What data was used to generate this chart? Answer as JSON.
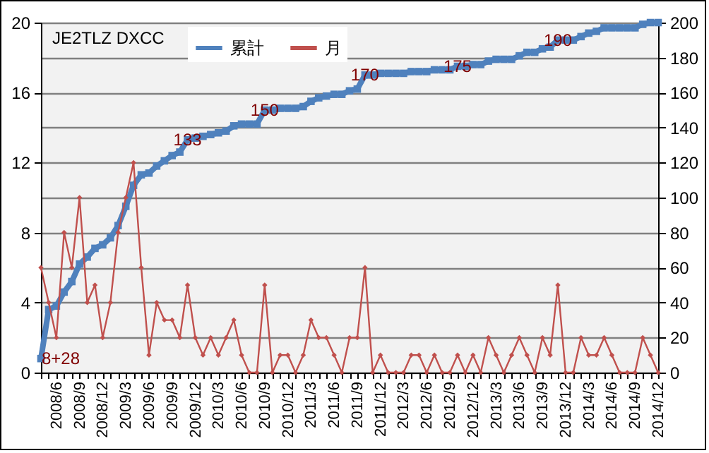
{
  "chart_data": {
    "type": "line",
    "title": "JE2TLZ DXCC",
    "categories": [
      null,
      null,
      "2008/6",
      null,
      null,
      "2008/9",
      null,
      null,
      "2008/12",
      null,
      null,
      "2009/3",
      null,
      null,
      "2009/6",
      null,
      null,
      "2009/9",
      null,
      null,
      "2009/12",
      null,
      null,
      "2010/3",
      null,
      null,
      "2010/6",
      null,
      null,
      "2010/9",
      null,
      null,
      "2010/12",
      null,
      null,
      "2011/3",
      null,
      null,
      "2011/6",
      null,
      null,
      "2011/9",
      null,
      null,
      "2011/12",
      null,
      null,
      "2012/3",
      null,
      null,
      "2012/6",
      null,
      null,
      "2012/9",
      null,
      null,
      "2012/12",
      null,
      null,
      "2013/3",
      null,
      null,
      "2013/6",
      null,
      null,
      "2013/9",
      null,
      null,
      "2013/12",
      null,
      null,
      "2014/3",
      null,
      null,
      "2014/6",
      null,
      null,
      "2014/9",
      null,
      null,
      "2014/12"
    ],
    "series": [
      {
        "name": "累計",
        "color": "#4f81bd",
        "axis": "y2",
        "marker": "square",
        "value_labels": [
          "8+28",
          null,
          null,
          null,
          null,
          null,
          null,
          null,
          null,
          null,
          null,
          null,
          null,
          null,
          null,
          null,
          null,
          null,
          null,
          "133",
          null,
          null,
          null,
          null,
          null,
          null,
          null,
          null,
          null,
          "150",
          null,
          null,
          null,
          null,
          null,
          null,
          null,
          null,
          null,
          null,
          null,
          null,
          "170",
          null,
          null,
          null,
          null,
          null,
          null,
          null,
          null,
          null,
          null,
          null,
          "175",
          null,
          null,
          null,
          null,
          null,
          null,
          null,
          null,
          null,
          null,
          null,
          null,
          "190",
          null,
          null,
          null,
          null,
          null,
          null,
          null,
          null,
          null,
          null,
          null,
          null,
          null
        ],
        "values": [
          8,
          36,
          38,
          46,
          52,
          62,
          66,
          71,
          73,
          77,
          84,
          95,
          107,
          113,
          114,
          118,
          121,
          124,
          126,
          133,
          134,
          135,
          136,
          137,
          138,
          141,
          142,
          142,
          142,
          150,
          150,
          151,
          151,
          151,
          152,
          155,
          157,
          158,
          159,
          159,
          161,
          162,
          170,
          170,
          171,
          171,
          171,
          171,
          172,
          172,
          172,
          173,
          173,
          173,
          175,
          175,
          176,
          176,
          178,
          179,
          179,
          179,
          181,
          183,
          183,
          185,
          186,
          190,
          190,
          190,
          192,
          194,
          195,
          197,
          197,
          197,
          197,
          197,
          199,
          200,
          200
        ]
      },
      {
        "name": "月",
        "color": "#c0504d",
        "axis": "y",
        "marker": "diamond",
        "values": [
          6,
          4,
          2,
          8,
          6,
          10,
          4,
          5,
          2,
          4,
          8,
          10,
          12,
          6,
          1,
          4,
          3,
          3,
          2,
          5,
          2,
          1,
          2,
          1,
          2,
          3,
          1,
          0,
          0,
          5,
          0,
          1,
          1,
          0,
          1,
          3,
          2,
          2,
          1,
          0,
          2,
          2,
          6,
          0,
          1,
          0,
          0,
          0,
          1,
          1,
          0,
          1,
          0,
          0,
          1,
          0,
          1,
          0,
          2,
          1,
          0,
          1,
          2,
          1,
          0,
          2,
          1,
          5,
          0,
          0,
          2,
          1,
          1,
          2,
          1,
          0,
          0,
          0,
          2,
          1,
          0
        ]
      }
    ],
    "ylim": [
      0,
      20
    ],
    "yticks": [
      0,
      4,
      8,
      12,
      16,
      20
    ],
    "y2lim": [
      0,
      200
    ],
    "y2ticks": [
      0,
      20,
      40,
      60,
      80,
      100,
      120,
      140,
      160,
      180,
      200
    ],
    "grid": "y",
    "legend": "top"
  }
}
